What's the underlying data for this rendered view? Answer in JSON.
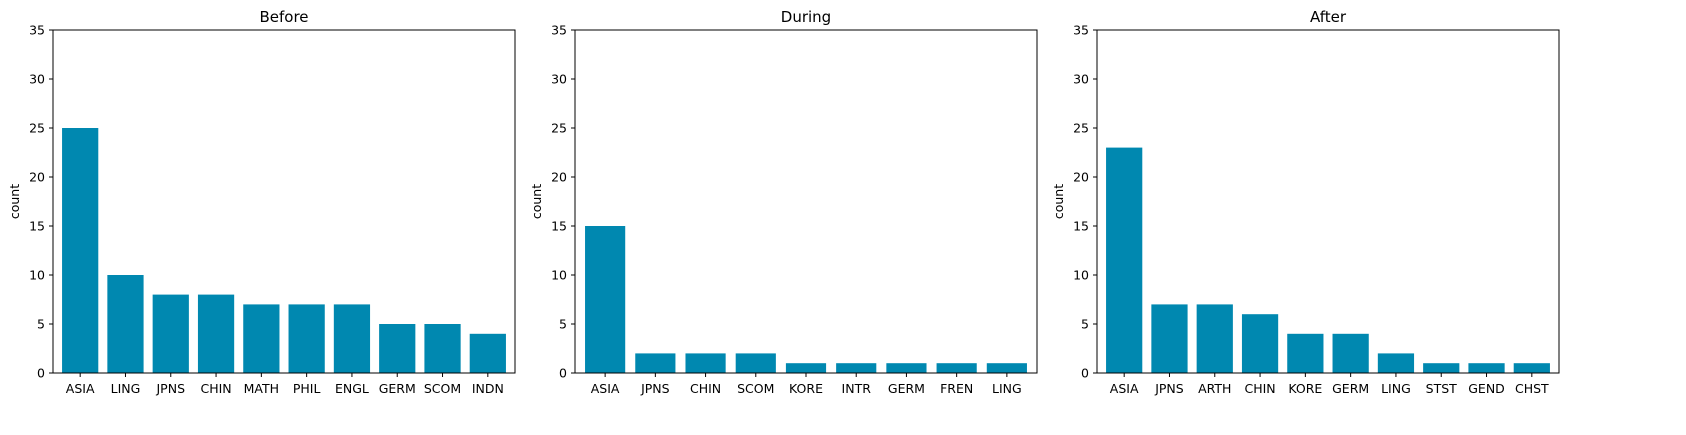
{
  "chart_data": [
    {
      "type": "bar",
      "title": "Before",
      "xlabel": "",
      "ylabel": "count",
      "ylim": [
        0,
        35
      ],
      "yticks": [
        0,
        5,
        10,
        15,
        20,
        25,
        30,
        35
      ],
      "grid": false,
      "color": "#0088b0",
      "categories": [
        "ASIA",
        "LING",
        "JPNS",
        "CHIN",
        "MATH",
        "PHIL",
        "ENGL",
        "GERM",
        "SCOM",
        "INDN"
      ],
      "values": [
        25,
        10,
        8,
        8,
        7,
        7,
        7,
        5,
        5,
        4
      ]
    },
    {
      "type": "bar",
      "title": "During",
      "xlabel": "",
      "ylabel": "count",
      "ylim": [
        0,
        35
      ],
      "yticks": [
        0,
        5,
        10,
        15,
        20,
        25,
        30,
        35
      ],
      "grid": false,
      "color": "#0088b0",
      "categories": [
        "ASIA",
        "JPNS",
        "CHIN",
        "SCOM",
        "KORE",
        "INTR",
        "GERM",
        "FREN",
        "LING"
      ],
      "values": [
        15,
        2,
        2,
        2,
        1,
        1,
        1,
        1,
        1
      ]
    },
    {
      "type": "bar",
      "title": "After",
      "xlabel": "",
      "ylabel": "count",
      "ylim": [
        0,
        35
      ],
      "yticks": [
        0,
        5,
        10,
        15,
        20,
        25,
        30,
        35
      ],
      "grid": false,
      "color": "#0088b0",
      "categories": [
        "ASIA",
        "JPNS",
        "ARTH",
        "CHIN",
        "KORE",
        "GERM",
        "LING",
        "STST",
        "GEND",
        "CHST"
      ],
      "values": [
        23,
        7,
        7,
        6,
        4,
        4,
        2,
        1,
        1,
        1
      ]
    }
  ]
}
